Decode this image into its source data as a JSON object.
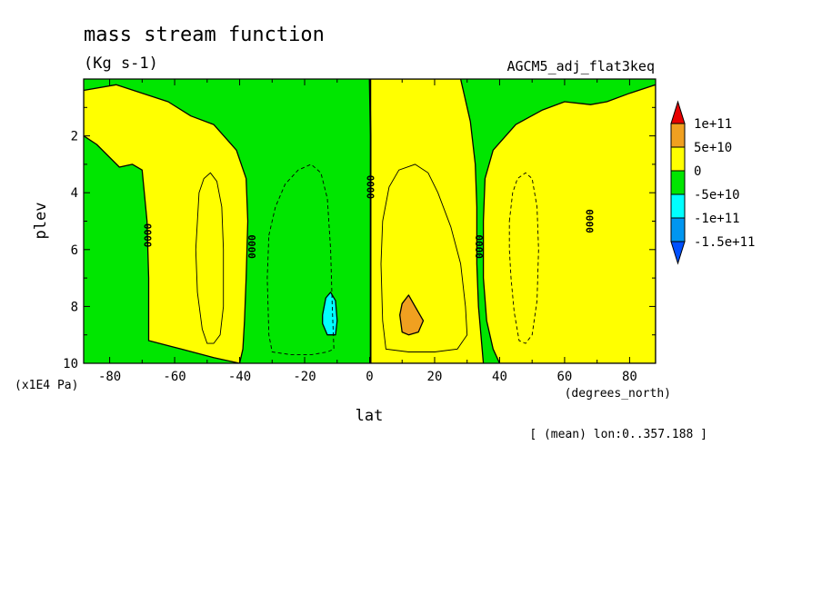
{
  "chart_data": {
    "type": "contour",
    "title": "mass stream function",
    "units": "(Kg s-1)",
    "dataset": "AGCM5_adj_flat3keq",
    "xlabel": "lat",
    "xunits": "(degrees_north)",
    "ylabel": "plev",
    "yunits": "(x1E4 Pa)",
    "footnote": "[ (mean) lon:0..357.188 ]",
    "xlim": [
      -88,
      88
    ],
    "ylim": [
      10,
      0
    ],
    "xticks": [
      -80,
      -60,
      -40,
      -20,
      0,
      20,
      40,
      60,
      80
    ],
    "xtick_labels": [
      "-80",
      "-60",
      "-40",
      "-20",
      "0",
      "20",
      "40",
      "60",
      "80"
    ],
    "yticks": [
      2,
      4,
      6,
      8,
      10
    ],
    "ytick_labels": [
      "2",
      "4",
      "6",
      "8",
      "10"
    ],
    "contour_label": "0000",
    "legend": {
      "placement": "right",
      "levels": [
        "1e+11",
        "5e+10",
        "0",
        "-5e+10",
        "-1e+11",
        "-1.5e+11"
      ],
      "colors": [
        "#e80000",
        "#f0a020",
        "#ffff00",
        "#00e600",
        "#00ffff",
        "#0096f0",
        "#0050ff"
      ]
    },
    "colors": {
      "positive_low": "#ffff00",
      "negative_low": "#00e600",
      "positive_high": "#f0a020",
      "negative_high": "#00ffff"
    },
    "regions": [
      {
        "name": "yellow-sh-polar",
        "value": "0 to 5e+10",
        "fill": "#ffff00",
        "points": [
          [
            -88,
            0.4
          ],
          [
            -78,
            0.2
          ],
          [
            -62,
            0.8
          ],
          [
            -55,
            1.3
          ],
          [
            -48,
            1.6
          ],
          [
            -41,
            2.5
          ],
          [
            -38,
            3.5
          ],
          [
            -37.5,
            5
          ],
          [
            -38,
            7
          ],
          [
            -38.5,
            8.5
          ],
          [
            -39,
            9.5
          ],
          [
            -40,
            10
          ],
          [
            -48,
            9.8
          ],
          [
            -58,
            9.5
          ],
          [
            -68,
            9.2
          ],
          [
            -68,
            7
          ],
          [
            -68.5,
            5
          ],
          [
            -70,
            3.2
          ],
          [
            -73,
            3
          ],
          [
            -77,
            3.1
          ],
          [
            -84,
            2.3
          ],
          [
            -88,
            2
          ]
        ]
      },
      {
        "name": "yellow-nh-tropics",
        "value": "0 to 5e+10",
        "fill": "#ffff00",
        "points": [
          [
            0.3,
            0
          ],
          [
            28,
            0
          ],
          [
            31,
            1.5
          ],
          [
            32.5,
            3
          ],
          [
            33,
            4.5
          ],
          [
            33,
            6.5
          ],
          [
            33.5,
            8
          ],
          [
            35,
            10
          ],
          [
            0.3,
            10
          ]
        ]
      },
      {
        "name": "yellow-nh-polar",
        "value": "0 to 5e+10",
        "fill": "#ffff00",
        "points": [
          [
            88,
            0.2
          ],
          [
            80,
            0.5
          ],
          [
            73,
            0.8
          ],
          [
            68,
            0.9
          ],
          [
            60,
            0.8
          ],
          [
            53,
            1.1
          ],
          [
            45,
            1.6
          ],
          [
            38,
            2.5
          ],
          [
            35.5,
            3.5
          ],
          [
            35,
            5
          ],
          [
            35,
            7
          ],
          [
            36,
            8.5
          ],
          [
            38,
            9.5
          ],
          [
            40,
            10
          ],
          [
            88,
            10
          ]
        ]
      },
      {
        "name": "orange-nh-max",
        "value": "5e+10 to 1e+11",
        "fill": "#f0a020",
        "points": [
          [
            9.3,
            8.3
          ],
          [
            10,
            7.9
          ],
          [
            12,
            7.6
          ],
          [
            14,
            8
          ],
          [
            16.5,
            8.5
          ],
          [
            15,
            8.9
          ],
          [
            12,
            9
          ],
          [
            10,
            8.9
          ]
        ]
      },
      {
        "name": "cyan-sh-min",
        "value": "-1e+11 to -5e+10",
        "fill": "#00ffff",
        "points": [
          [
            -14.5,
            8.3
          ],
          [
            -13.5,
            7.7
          ],
          [
            -12,
            7.5
          ],
          [
            -10.5,
            7.8
          ],
          [
            -10,
            8.5
          ],
          [
            -10.5,
            9
          ],
          [
            -13,
            9
          ],
          [
            -14.5,
            8.6
          ]
        ]
      }
    ],
    "contours": [
      {
        "name": "sh-polar-cell",
        "style": "solid",
        "points": [
          [
            -53,
            5
          ],
          [
            -52.5,
            4
          ],
          [
            -51,
            3.5
          ],
          [
            -49,
            3.3
          ],
          [
            -47,
            3.6
          ],
          [
            -45.5,
            4.5
          ],
          [
            -45,
            6
          ],
          [
            -45,
            8
          ],
          [
            -46,
            9
          ],
          [
            -48,
            9.3
          ],
          [
            -50,
            9.3
          ],
          [
            -51.5,
            8.8
          ],
          [
            -53,
            7.5
          ],
          [
            -53.5,
            6
          ]
        ]
      },
      {
        "name": "sh-hadley-cell",
        "style": "dashed",
        "points": [
          [
            -31,
            5.5
          ],
          [
            -29,
            4.5
          ],
          [
            -26,
            3.7
          ],
          [
            -22,
            3.2
          ],
          [
            -18,
            3
          ],
          [
            -15,
            3.3
          ],
          [
            -13,
            4.2
          ],
          [
            -12,
            6
          ],
          [
            -11.5,
            8
          ],
          [
            -11,
            9.5
          ],
          [
            -13,
            9.6
          ],
          [
            -18,
            9.7
          ],
          [
            -24,
            9.7
          ],
          [
            -30,
            9.6
          ],
          [
            -31,
            9
          ],
          [
            -31.5,
            7
          ]
        ]
      },
      {
        "name": "nh-hadley-cell",
        "style": "solid",
        "points": [
          [
            4,
            5
          ],
          [
            6,
            3.8
          ],
          [
            9,
            3.2
          ],
          [
            14,
            3
          ],
          [
            18,
            3.3
          ],
          [
            21,
            4
          ],
          [
            25,
            5.2
          ],
          [
            28,
            6.5
          ],
          [
            29.5,
            8
          ],
          [
            30,
            9
          ],
          [
            27,
            9.5
          ],
          [
            20,
            9.6
          ],
          [
            12,
            9.6
          ],
          [
            5,
            9.5
          ],
          [
            4,
            8.5
          ],
          [
            3.5,
            6.5
          ]
        ]
      },
      {
        "name": "nh-polar-cell",
        "style": "dashed",
        "points": [
          [
            43,
            5
          ],
          [
            44,
            4
          ],
          [
            45.5,
            3.5
          ],
          [
            48,
            3.3
          ],
          [
            50,
            3.5
          ],
          [
            51.5,
            4.5
          ],
          [
            52,
            6
          ],
          [
            51.5,
            7.8
          ],
          [
            50,
            9
          ],
          [
            48,
            9.3
          ],
          [
            46,
            9.2
          ],
          [
            44.5,
            8.2
          ],
          [
            43.5,
            7
          ],
          [
            43,
            6
          ]
        ]
      }
    ],
    "zero_contour_labels": [
      [
        -68.5,
        5.5
      ],
      [
        -36.5,
        5.9
      ],
      [
        0,
        3.8
      ],
      [
        33.5,
        5.9
      ],
      [
        67.5,
        5
      ]
    ],
    "equator_line": [
      [
        0,
        0
      ],
      [
        0.3,
        2
      ],
      [
        0.3,
        10
      ]
    ]
  }
}
